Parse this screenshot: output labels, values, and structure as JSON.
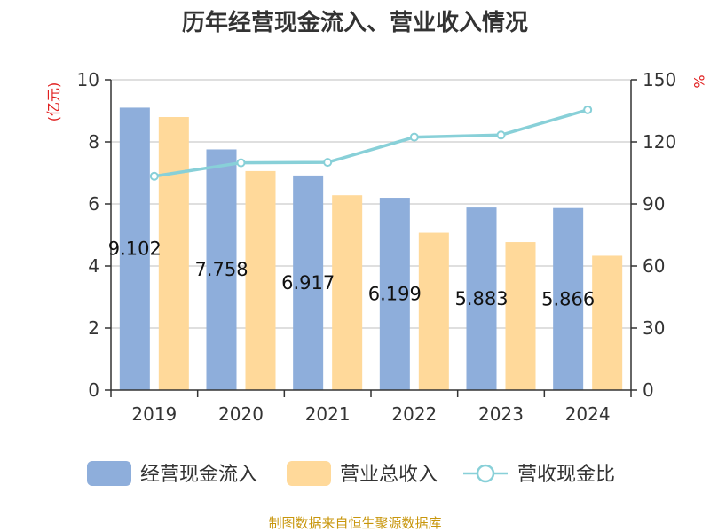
{
  "chart_data": {
    "type": "bar",
    "title": "历年经营现金流入、营业收入情况",
    "categories": [
      "2019",
      "2020",
      "2021",
      "2022",
      "2023",
      "2024"
    ],
    "series": [
      {
        "name": "经营现金流入",
        "type": "bar",
        "axis": "left",
        "color": "#8eaedb",
        "values": [
          9.102,
          7.758,
          6.917,
          6.199,
          5.883,
          5.866
        ],
        "labels": [
          "9.102",
          "7.758",
          "6.917",
          "6.199",
          "5.883",
          "5.866"
        ]
      },
      {
        "name": "营业总收入",
        "type": "bar",
        "axis": "left",
        "color": "#ffd99a",
        "values": [
          8.8,
          7.06,
          6.28,
          5.07,
          4.77,
          4.33
        ]
      },
      {
        "name": "营收现金比",
        "type": "line",
        "axis": "right",
        "color": "#88d0d8",
        "values": [
          103.4,
          109.9,
          110.1,
          122.3,
          123.3,
          135.5
        ]
      }
    ],
    "y_left": {
      "unit": "(亿元)",
      "min": 0,
      "max": 10,
      "ticks": [
        0,
        2,
        4,
        6,
        8,
        10
      ]
    },
    "y_right": {
      "unit": "%",
      "min": 0,
      "max": 150,
      "ticks": [
        0,
        30,
        60,
        90,
        120,
        150
      ]
    },
    "grid": true,
    "legend_position": "bottom",
    "source": "制图数据来自恒生聚源数据库"
  }
}
